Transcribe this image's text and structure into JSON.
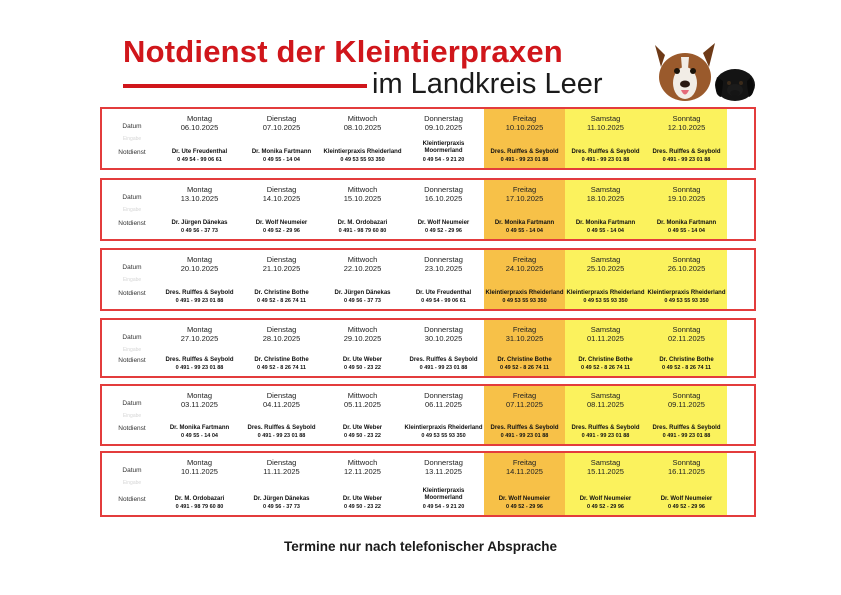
{
  "header": {
    "title": "Notdienst der Kleintierpraxen",
    "subtitle": "im Landkreis Leer"
  },
  "row_labels": {
    "date": "Datum",
    "faint": "Eingabe",
    "service": "Notdienst"
  },
  "accent_color": "#d0161b",
  "weekend_color": "#fbf25d",
  "friday_color": "#f7c148",
  "weeks": [
    {
      "days": [
        {
          "name": "Montag",
          "date": "06.10.2025",
          "practice": "Dr. Ute Freudenthal",
          "phone": "0 49 54 - 99 06 61"
        },
        {
          "name": "Dienstag",
          "date": "07.10.2025",
          "practice": "Dr. Monika Fartmann",
          "phone": "0 49 55 - 14 04"
        },
        {
          "name": "Mittwoch",
          "date": "08.10.2025",
          "practice": "Kleintierpraxis Rheiderland",
          "phone": "0 49 53 55 93 350"
        },
        {
          "name": "Donnerstag",
          "date": "09.10.2025",
          "practice": "Kleintierpraxis",
          "practice2": "Moormerland",
          "phone": "0 49 54 - 9 21 20"
        },
        {
          "name": "Freitag",
          "date": "10.10.2025",
          "practice": "Dres. Rulffes & Seybold",
          "phone": "0 491 - 99 23 01 88"
        },
        {
          "name": "Samstag",
          "date": "11.10.2025",
          "practice": "Dres. Rulffes & Seybold",
          "phone": "0 491 - 99 23 01 88"
        },
        {
          "name": "Sonntag",
          "date": "12.10.2025",
          "practice": "Dres. Rulffes & Seybold",
          "phone": "0 491 - 99 23 01 88"
        }
      ]
    },
    {
      "days": [
        {
          "name": "Montag",
          "date": "13.10.2025",
          "practice": "Dr. Jürgen Dänekas",
          "phone": "0 49 56 - 37 73"
        },
        {
          "name": "Dienstag",
          "date": "14.10.2025",
          "practice": "Dr. Wolf Neumeier",
          "phone": "0 49 52 - 29 96"
        },
        {
          "name": "Mittwoch",
          "date": "15.10.2025",
          "practice": "Dr. M. Ordobazari",
          "phone": "0 491 - 98 79 60 80"
        },
        {
          "name": "Donnerstag",
          "date": "16.10.2025",
          "practice": "Dr. Wolf Neumeier",
          "phone": "0 49 52 - 29 96"
        },
        {
          "name": "Freitag",
          "date": "17.10.2025",
          "practice": "Dr. Monika Fartmann",
          "phone": "0 49 55 - 14 04"
        },
        {
          "name": "Samstag",
          "date": "18.10.2025",
          "practice": "Dr. Monika Fartmann",
          "phone": "0 49 55 - 14 04"
        },
        {
          "name": "Sonntag",
          "date": "19.10.2025",
          "practice": "Dr. Monika Fartmann",
          "phone": "0 49 55 - 14 04"
        }
      ]
    },
    {
      "days": [
        {
          "name": "Montag",
          "date": "20.10.2025",
          "practice": "Dres. Rulffes & Seybold",
          "phone": "0 491 - 99 23 01 88"
        },
        {
          "name": "Dienstag",
          "date": "21.10.2025",
          "practice": "Dr. Christine Bothe",
          "phone": "0 49 52 - 8 26 74 11"
        },
        {
          "name": "Mittwoch",
          "date": "22.10.2025",
          "practice": "Dr. Jürgen Dänekas",
          "phone": "0 49 56 - 37 73"
        },
        {
          "name": "Donnerstag",
          "date": "23.10.2025",
          "practice": "Dr. Ute Freudenthal",
          "phone": "0 49 54 - 99 06 61"
        },
        {
          "name": "Freitag",
          "date": "24.10.2025",
          "practice": "Kleintierpraxis Rheiderland",
          "phone": "0 49 53 55 93 350"
        },
        {
          "name": "Samstag",
          "date": "25.10.2025",
          "practice": "Kleintierpraxis Rheiderland",
          "phone": "0 49 53 55 93 350"
        },
        {
          "name": "Sonntag",
          "date": "26.10.2025",
          "practice": "Kleintierpraxis Rheiderland",
          "phone": "0 49 53 55 93 350"
        }
      ]
    },
    {
      "days": [
        {
          "name": "Montag",
          "date": "27.10.2025",
          "practice": "Dres. Rulffes & Seybold",
          "phone": "0 491 - 99 23 01 88"
        },
        {
          "name": "Dienstag",
          "date": "28.10.2025",
          "practice": "Dr. Christine Bothe",
          "phone": "0 49 52 - 8 26 74 11"
        },
        {
          "name": "Mittwoch",
          "date": "29.10.2025",
          "practice": "Dr. Ute Weber",
          "phone": "0 49 50 - 23 22"
        },
        {
          "name": "Donnerstag",
          "date": "30.10.2025",
          "practice": "Dres. Rulffes & Seybold",
          "phone": "0 491 - 99 23 01 88"
        },
        {
          "name": "Freitag",
          "date": "31.10.2025",
          "practice": "Dr. Christine Bothe",
          "phone": "0 49 52 - 8 26 74 11"
        },
        {
          "name": "Samstag",
          "date": "01.11.2025",
          "practice": "Dr. Christine Bothe",
          "phone": "0 49 52 - 8 26 74 11"
        },
        {
          "name": "Sonntag",
          "date": "02.11.2025",
          "practice": "Dr. Christine Bothe",
          "phone": "0 49 52 - 8 26 74 11"
        }
      ]
    },
    {
      "days": [
        {
          "name": "Montag",
          "date": "03.11.2025",
          "practice": "Dr. Monika Fartmann",
          "phone": "0 49 55 - 14 04"
        },
        {
          "name": "Dienstag",
          "date": "04.11.2025",
          "practice": "Dres. Rulffes & Seybold",
          "phone": "0 491 - 99 23 01 88"
        },
        {
          "name": "Mittwoch",
          "date": "05.11.2025",
          "practice": "Dr. Ute Weber",
          "phone": "0 49 50 - 23 22"
        },
        {
          "name": "Donnerstag",
          "date": "06.11.2025",
          "practice": "Kleintierpraxis Rheiderland",
          "phone": "0 49 53 55 93 350"
        },
        {
          "name": "Freitag",
          "date": "07.11.2025",
          "practice": "Dres. Rulffes & Seybold",
          "phone": "0 491 - 99 23 01 88"
        },
        {
          "name": "Samstag",
          "date": "08.11.2025",
          "practice": "Dres. Rulffes & Seybold",
          "phone": "0 491 - 99 23 01 88"
        },
        {
          "name": "Sonntag",
          "date": "09.11.2025",
          "practice": "Dres. Rulffes & Seybold",
          "phone": "0 491 - 99 23 01 88"
        }
      ]
    },
    {
      "days": [
        {
          "name": "Montag",
          "date": "10.11.2025",
          "practice": "Dr. M. Ordobazari",
          "phone": "0 491 - 98 79 60 80"
        },
        {
          "name": "Dienstag",
          "date": "11.11.2025",
          "practice": "Dr. Jürgen Dänekas",
          "phone": "0 49 56 - 37 73"
        },
        {
          "name": "Mittwoch",
          "date": "12.11.2025",
          "practice": "Dr. Ute Weber",
          "phone": "0 49 50 - 23 22"
        },
        {
          "name": "Donnerstag",
          "date": "13.11.2025",
          "practice": "Kleintierpraxis",
          "practice2": "Moormerland",
          "phone": "0 49 54 - 9 21 20"
        },
        {
          "name": "Freitag",
          "date": "14.11.2025",
          "practice": "Dr. Wolf Neumeier",
          "phone": "0 49 52 - 29 96"
        },
        {
          "name": "Samstag",
          "date": "15.11.2025",
          "practice": "Dr. Wolf Neumeier",
          "phone": "0 49 52 - 29 96"
        },
        {
          "name": "Sonntag",
          "date": "16.11.2025",
          "practice": "Dr. Wolf Neumeier",
          "phone": "0 49 52 - 29 96"
        }
      ]
    }
  ],
  "footer": {
    "note": "Termine nur nach telefonischer Absprache"
  }
}
